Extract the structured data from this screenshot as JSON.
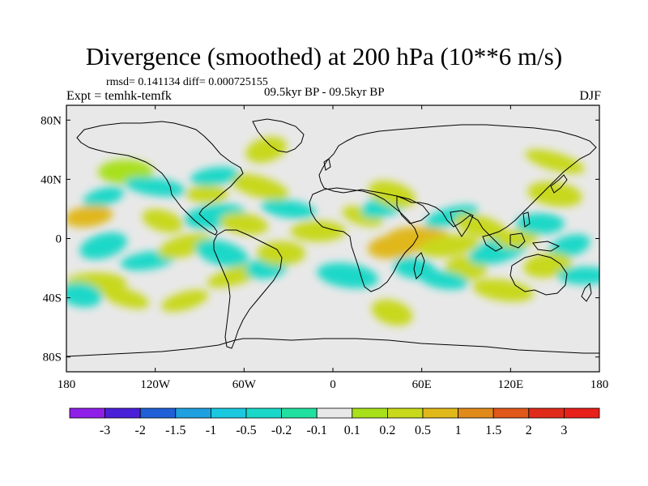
{
  "title": "Divergence (smoothed) at 200 hPa (10**6 m/s)",
  "stats": "rmsd= 0.141134  diff= 0.000725155",
  "experiment": "Expt = temhk-temfk",
  "period": "09.5kyr BP - 09.5kyr BP",
  "season": "DJF",
  "colors": {
    "land_outline": "#000000",
    "near_zero": "#e8e8e8"
  },
  "chart_data": {
    "type": "heatmap",
    "projection": "cylindrical-equidistant",
    "lon_range": [
      -180,
      180
    ],
    "lat_range": [
      -90,
      90
    ],
    "x_ticks": [
      {
        "lon": -180,
        "label": "180"
      },
      {
        "lon": -120,
        "label": "120W"
      },
      {
        "lon": -60,
        "label": "60W"
      },
      {
        "lon": 0,
        "label": "0"
      },
      {
        "lon": 60,
        "label": "60E"
      },
      {
        "lon": 120,
        "label": "120E"
      },
      {
        "lon": 180,
        "label": "180"
      }
    ],
    "y_ticks": [
      {
        "lat": 80,
        "label": "80N"
      },
      {
        "lat": 40,
        "label": "40N"
      },
      {
        "lat": 0,
        "label": "0"
      },
      {
        "lat": -40,
        "label": "40S"
      },
      {
        "lat": -80,
        "label": "80S"
      }
    ],
    "colorbar": {
      "labels": [
        "-3",
        "-2",
        "-1.5",
        "-1",
        "-0.5",
        "-0.2",
        "-0.1",
        "0.1",
        "0.2",
        "0.5",
        "1",
        "1.5",
        "2",
        "3"
      ],
      "colors": [
        "#8f1fe8",
        "#4a1fd8",
        "#1f60d8",
        "#1fa0e0",
        "#1ac8e0",
        "#1ad8c8",
        "#22e0a0",
        "#e8e8e8",
        "#a8e01a",
        "#c8d81a",
        "#e0b81a",
        "#e08a1a",
        "#e0581a",
        "#e02a1a",
        "#e8201a"
      ]
    },
    "anomalies": [
      {
        "lon": -155,
        "lat": 28,
        "value": -0.3
      },
      {
        "lon": -165,
        "lat": 15,
        "value": 0.8
      },
      {
        "lon": -140,
        "lat": 45,
        "value": 0.15
      },
      {
        "lon": -120,
        "lat": 35,
        "value": -0.3
      },
      {
        "lon": -115,
        "lat": 12,
        "value": 0.3
      },
      {
        "lon": -155,
        "lat": -5,
        "value": -0.3
      },
      {
        "lon": -125,
        "lat": -15,
        "value": -0.3
      },
      {
        "lon": -160,
        "lat": -30,
        "value": 0.3
      },
      {
        "lon": -170,
        "lat": -38,
        "value": -0.3
      },
      {
        "lon": -140,
        "lat": -40,
        "value": 0.2
      },
      {
        "lon": -100,
        "lat": -5,
        "value": 0.3
      },
      {
        "lon": -80,
        "lat": 15,
        "value": -0.3
      },
      {
        "lon": -85,
        "lat": 30,
        "value": 0.3
      },
      {
        "lon": -60,
        "lat": 10,
        "value": 0.2
      },
      {
        "lon": -75,
        "lat": -10,
        "value": -0.3
      },
      {
        "lon": -65,
        "lat": -25,
        "value": 0.2
      },
      {
        "lon": -45,
        "lat": -20,
        "value": -0.3
      },
      {
        "lon": -35,
        "lat": -10,
        "value": 0.3
      },
      {
        "lon": -30,
        "lat": 20,
        "value": -0.3
      },
      {
        "lon": -50,
        "lat": 35,
        "value": 0.2
      },
      {
        "lon": -45,
        "lat": 60,
        "value": 0.2
      },
      {
        "lon": -80,
        "lat": 42,
        "value": -0.2
      },
      {
        "lon": -10,
        "lat": 5,
        "value": 0.3
      },
      {
        "lon": 10,
        "lat": -25,
        "value": -0.3
      },
      {
        "lon": 20,
        "lat": 15,
        "value": 0.3
      },
      {
        "lon": 35,
        "lat": 22,
        "value": -0.3
      },
      {
        "lon": 42,
        "lat": -5,
        "value": 0.5
      },
      {
        "lon": 58,
        "lat": 2,
        "value": 0.6
      },
      {
        "lon": 55,
        "lat": -20,
        "value": -0.3
      },
      {
        "lon": 40,
        "lat": 30,
        "value": 0.2
      },
      {
        "lon": 80,
        "lat": 15,
        "value": -0.3
      },
      {
        "lon": 78,
        "lat": -5,
        "value": 0.3
      },
      {
        "lon": 90,
        "lat": -20,
        "value": 0.3
      },
      {
        "lon": 75,
        "lat": -28,
        "value": -0.3
      },
      {
        "lon": 100,
        "lat": 8,
        "value": 0.3
      },
      {
        "lon": 112,
        "lat": -8,
        "value": -0.3
      },
      {
        "lon": 125,
        "lat": 0,
        "value": 0.3
      },
      {
        "lon": 140,
        "lat": 10,
        "value": -0.3
      },
      {
        "lon": 150,
        "lat": 30,
        "value": 0.2
      },
      {
        "lon": 150,
        "lat": 52,
        "value": 0.2
      },
      {
        "lon": 160,
        "lat": -5,
        "value": -0.3
      },
      {
        "lon": 145,
        "lat": -18,
        "value": 0.3
      },
      {
        "lon": 170,
        "lat": -25,
        "value": -0.3
      },
      {
        "lon": 115,
        "lat": -35,
        "value": 0.2
      },
      {
        "lon": 40,
        "lat": -50,
        "value": 0.2
      },
      {
        "lon": -100,
        "lat": -42,
        "value": 0.2
      }
    ]
  }
}
